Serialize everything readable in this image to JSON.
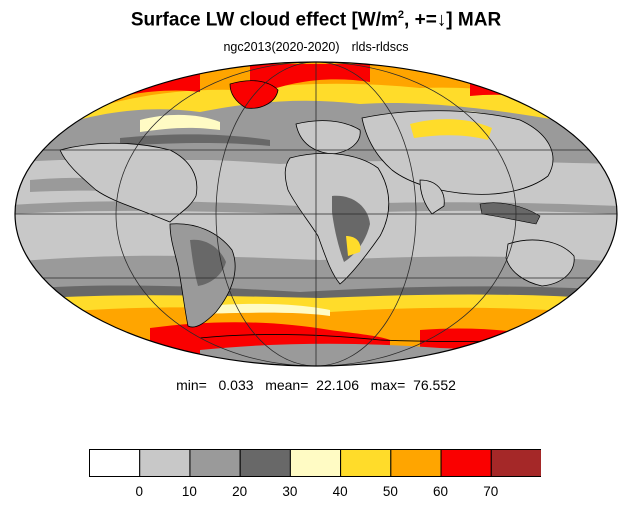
{
  "title": {
    "main": "Surface LW cloud effect [W/m",
    "sup": "2",
    "tail": ", +=↓]  MAR"
  },
  "subtitle": {
    "left": "ngc2013(2020-2020)",
    "right": "rlds-rldscs"
  },
  "stats": {
    "text": "min=   0.033   mean=  22.106   max=  76.552"
  },
  "colorbar": {
    "labels": [
      "0",
      "10",
      "20",
      "30",
      "40",
      "50",
      "60",
      "70"
    ],
    "colors": [
      "#ffffff",
      "#c8c8c8",
      "#9a9a9a",
      "#686868",
      "#fffbc4",
      "#ffdc2a",
      "#ffa500",
      "#fa0000",
      "#a52828"
    ]
  },
  "palette": {
    "ocean_base": "#c8c8c8",
    "land_outline": "#000000"
  }
}
